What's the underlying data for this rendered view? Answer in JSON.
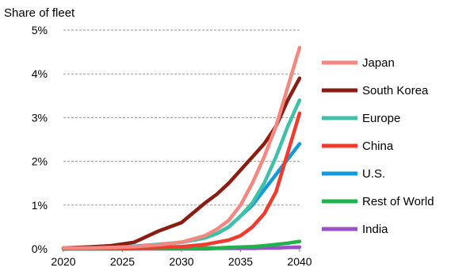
{
  "chart_data": {
    "type": "line",
    "title": "Share of fleet",
    "xlabel": "",
    "ylabel": "",
    "xlim": [
      2020,
      2040
    ],
    "ylim": [
      0,
      5
    ],
    "x_ticks": [
      "2020",
      "2025",
      "2030",
      "2035",
      "2040"
    ],
    "y_ticks": [
      "0%",
      "1%",
      "2%",
      "3%",
      "4%",
      "5%"
    ],
    "grid": "horizontal dashed",
    "legend_position": "right",
    "x": [
      2020,
      2022,
      2024,
      2026,
      2028,
      2030,
      2032,
      2033,
      2034,
      2035,
      2036,
      2037,
      2038,
      2039,
      2040
    ],
    "series": [
      {
        "name": "Japan",
        "color": "#f4877f",
        "values": [
          0.02,
          0.02,
          0.03,
          0.05,
          0.09,
          0.15,
          0.3,
          0.45,
          0.65,
          1.0,
          1.5,
          2.1,
          2.8,
          3.7,
          4.6
        ]
      },
      {
        "name": "South Korea",
        "color": "#8b1c12",
        "values": [
          0.02,
          0.04,
          0.07,
          0.15,
          0.4,
          0.6,
          1.05,
          1.25,
          1.5,
          1.8,
          2.1,
          2.4,
          2.8,
          3.4,
          3.9
        ]
      },
      {
        "name": "Europe",
        "color": "#40c0a6",
        "values": [
          0.02,
          0.02,
          0.03,
          0.05,
          0.09,
          0.15,
          0.25,
          0.35,
          0.5,
          0.75,
          1.05,
          1.5,
          2.1,
          2.8,
          3.4
        ]
      },
      {
        "name": "China",
        "color": "#f23b2e",
        "values": [
          0.01,
          0.01,
          0.01,
          0.02,
          0.03,
          0.05,
          0.1,
          0.15,
          0.2,
          0.3,
          0.5,
          0.8,
          1.3,
          2.2,
          3.1
        ]
      },
      {
        "name": "U.S.",
        "color": "#129ad8",
        "values": [
          0.02,
          0.02,
          0.04,
          0.06,
          0.1,
          0.15,
          0.25,
          0.35,
          0.5,
          0.75,
          1.0,
          1.35,
          1.7,
          2.05,
          2.4
        ]
      },
      {
        "name": "Rest of World",
        "color": "#1fb34a",
        "values": [
          0.0,
          0.0,
          0.0,
          0.0,
          0.01,
          0.01,
          0.02,
          0.02,
          0.03,
          0.04,
          0.05,
          0.07,
          0.1,
          0.13,
          0.17
        ]
      },
      {
        "name": "India",
        "color": "#9b4fc9",
        "values": [
          0.0,
          0.0,
          0.0,
          0.0,
          0.0,
          0.0,
          0.0,
          0.01,
          0.01,
          0.01,
          0.01,
          0.02,
          0.02,
          0.03,
          0.04
        ]
      }
    ]
  }
}
